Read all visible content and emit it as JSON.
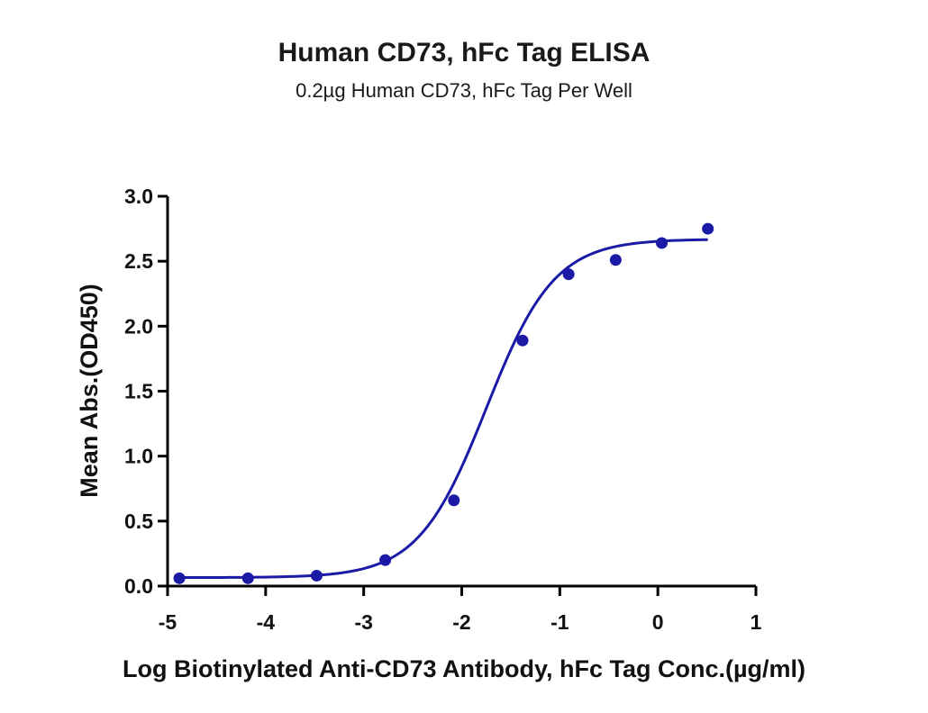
{
  "chart_data": {
    "type": "scatter",
    "title": "Human CD73, hFc Tag ELISA",
    "subtitle": "0.2µg Human CD73, hFc Tag Per Well",
    "xlabel": "Log Biotinylated Anti-CD73 Antibody, hFc Tag Conc.(µg/ml)",
    "ylabel": "Mean Abs.(OD450)",
    "xlim": [
      -5,
      1
    ],
    "ylim": [
      0,
      3.0
    ],
    "x_ticks": [
      "-5",
      "-4",
      "-3",
      "-2",
      "-1",
      "0",
      "1"
    ],
    "y_ticks": [
      "0.0",
      "0.5",
      "1.0",
      "1.5",
      "2.0",
      "2.5",
      "3.0"
    ],
    "grid": false,
    "color": "#1a1aa6",
    "series": [
      {
        "points": [
          {
            "x": -4.88,
            "y": 0.06
          },
          {
            "x": -4.18,
            "y": 0.06
          },
          {
            "x": -3.48,
            "y": 0.08
          },
          {
            "x": -2.78,
            "y": 0.2
          },
          {
            "x": -2.08,
            "y": 0.66
          },
          {
            "x": -1.38,
            "y": 1.89
          },
          {
            "x": -0.91,
            "y": 2.4
          },
          {
            "x": -0.43,
            "y": 2.51
          },
          {
            "x": 0.04,
            "y": 2.64
          },
          {
            "x": 0.51,
            "y": 2.75
          }
        ],
        "fit": {
          "model": "4PL",
          "bottom": 0.065,
          "top": 2.67,
          "log_ec50": -1.75,
          "hill": 1.25,
          "x_range": [
            -4.88,
            0.51
          ]
        }
      }
    ]
  }
}
